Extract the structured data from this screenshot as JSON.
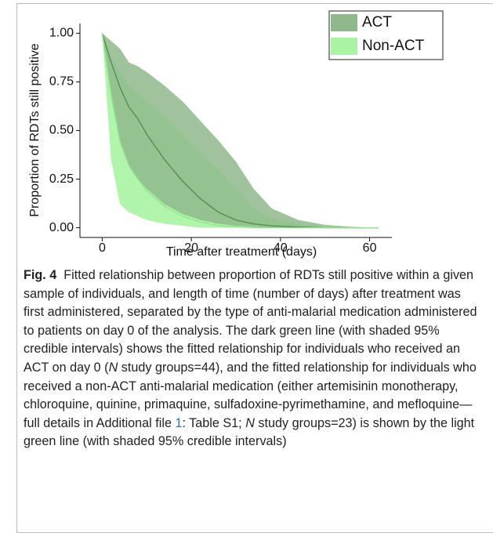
{
  "chart_data": {
    "type": "line",
    "xlabel": "Time after treatment (days)",
    "ylabel": "Proportion of RDTs still positive",
    "x": [
      0,
      2,
      4,
      6,
      8,
      10,
      14,
      18,
      22,
      26,
      30,
      34,
      38,
      44,
      50,
      56,
      62
    ],
    "xlim": [
      -5,
      65
    ],
    "xticks": [
      0,
      20,
      40,
      60
    ],
    "ylim": [
      -0.05,
      1.05
    ],
    "yticks": [
      {
        "value": 0,
        "label": "0.00"
      },
      {
        "value": 0.25,
        "label": "0.25"
      },
      {
        "value": 0.5,
        "label": "0.50"
      },
      {
        "value": 0.75,
        "label": "0.75"
      },
      {
        "value": 1,
        "label": "1.00"
      }
    ],
    "legend": "upper right",
    "series": [
      {
        "name": "ACT",
        "color": "#4f8c4c",
        "band_color": "#8fb88c",
        "values": [
          1,
          0.85,
          0.72,
          0.62,
          0.56,
          0.48,
          0.35,
          0.24,
          0.15,
          0.08,
          0.04,
          0.02,
          0.01,
          0.003,
          0,
          0,
          0
        ],
        "upper": [
          1,
          0.96,
          0.92,
          0.85,
          0.83,
          0.8,
          0.73,
          0.65,
          0.55,
          0.45,
          0.34,
          0.2,
          0.1,
          0.04,
          0.015,
          0.005,
          0
        ],
        "lower": [
          1,
          0.7,
          0.45,
          0.32,
          0.25,
          0.2,
          0.12,
          0.07,
          0.04,
          0.02,
          0.01,
          0.005,
          0,
          0,
          0,
          0,
          0
        ]
      },
      {
        "name": "Non-ACT",
        "color": "#8ee58a",
        "band_color": "#a9f3a3",
        "values": [
          1,
          0.68,
          0.44,
          0.32,
          0.25,
          0.19,
          0.11,
          0.06,
          0.03,
          0.01,
          0.005,
          0,
          0,
          0,
          0,
          0,
          0
        ],
        "upper": [
          1,
          0.88,
          0.8,
          0.73,
          0.69,
          0.65,
          0.57,
          0.48,
          0.38,
          0.3,
          0.2,
          0.1,
          0.05,
          0.02,
          0.005,
          0,
          0
        ],
        "lower": [
          1,
          0.35,
          0.12,
          0.08,
          0.06,
          0.04,
          0.02,
          0.01,
          0,
          0,
          0,
          0,
          0,
          0,
          0,
          0,
          0
        ]
      }
    ]
  },
  "caption": {
    "label": "Fig. 4",
    "segments": [
      "Fitted relationship between proportion of RDTs still positive within a given sample of individuals, and length of time (number of days) after treatment was first administered, separated by the type of anti-malarial medication administered to patients on day 0 of the analysis. The dark green line (with shaded 95% credible intervals) shows the fitted relationship for individuals who received an ACT on day 0 (",
      "N",
      " study groups=44), and the fitted relationship for individuals who received a non-ACT anti-malarial medication (either artemisinin monotherapy, chloroquine, quinine, primaquine, sulfadoxine-pyrimethamine, and mefloquine—full details in Additional file ",
      "1",
      ": Table S1; ",
      "N",
      " study groups=23) is shown by the light green line (with shaded 95% credible intervals)"
    ]
  }
}
